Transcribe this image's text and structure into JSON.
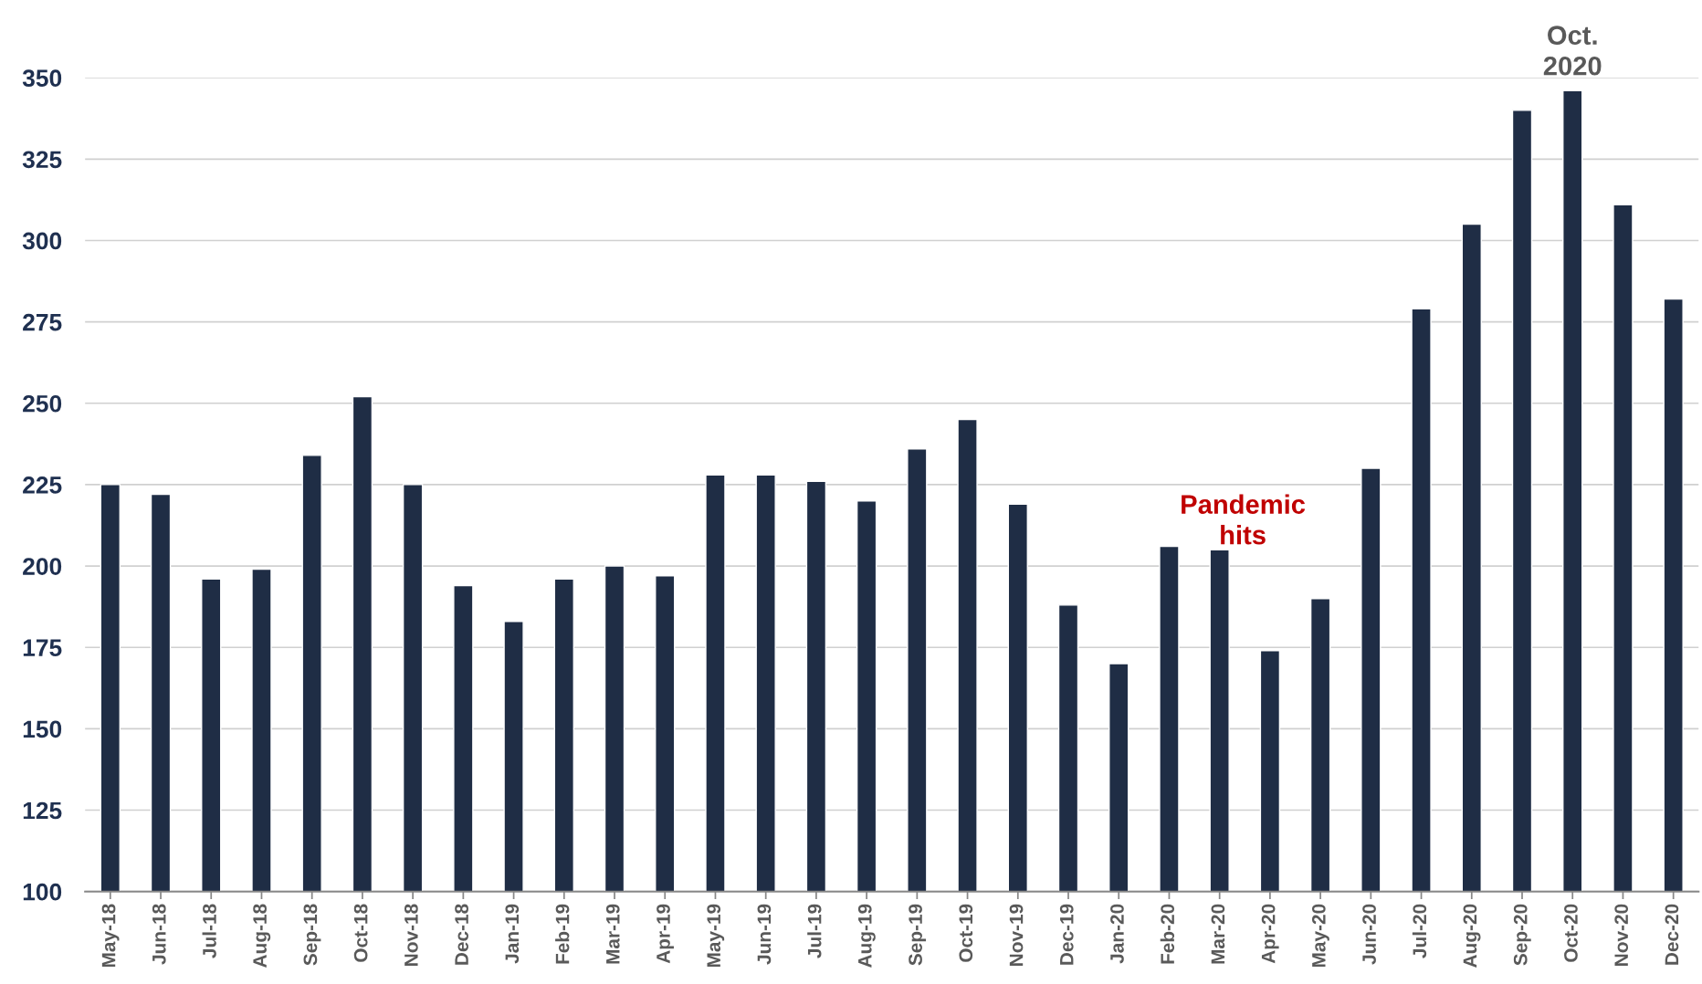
{
  "chart_data": {
    "type": "bar",
    "categories": [
      "May-18",
      "Jun-18",
      "Jul-18",
      "Aug-18",
      "Sep-18",
      "Oct-18",
      "Nov-18",
      "Dec-18",
      "Jan-19",
      "Feb-19",
      "Mar-19",
      "Apr-19",
      "May-19",
      "Jun-19",
      "Jul-19",
      "Aug-19",
      "Sep-19",
      "Oct-19",
      "Nov-19",
      "Dec-19",
      "Jan-20",
      "Feb-20",
      "Mar-20",
      "Apr-20",
      "May-20",
      "Jun-20",
      "Jul-20",
      "Aug-20",
      "Sep-20",
      "Oct-20",
      "Nov-20",
      "Dec-20"
    ],
    "values": [
      225,
      222,
      196,
      199,
      234,
      252,
      225,
      194,
      183,
      196,
      200,
      197,
      228,
      228,
      226,
      220,
      236,
      245,
      219,
      188,
      170,
      206,
      205,
      174,
      190,
      230,
      279,
      305,
      340,
      346,
      311,
      282
    ],
    "color": "#1f2d45",
    "ylim": [
      100,
      350
    ],
    "yticks": [
      100,
      125,
      150,
      175,
      200,
      225,
      250,
      275,
      300,
      325,
      350
    ],
    "grid": "y",
    "annotations": [
      "Pandemic\nhits",
      {
        "text": "Oct.\n2020",
        "x": "Oct-20",
        "y": 346
      }
    ]
  }
}
